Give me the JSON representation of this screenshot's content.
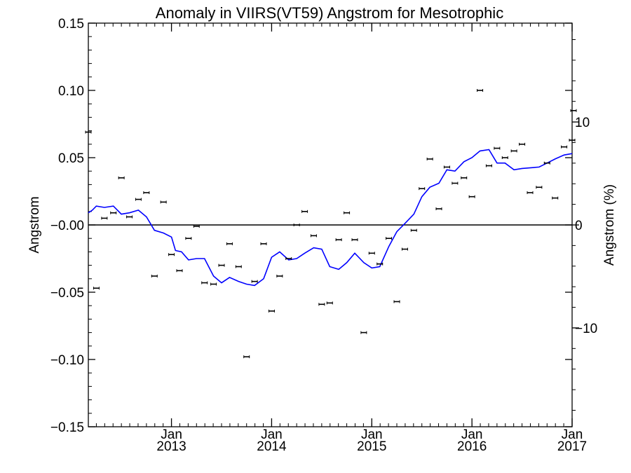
{
  "chart_data": {
    "type": "scatter",
    "title": "Anomaly in VIIRS(VT59) Angstrom for Mesotrophic",
    "ylabel": "Angstrom",
    "y2label": "Angstrom (%)",
    "xlabel": "",
    "xlim": [
      2012.17,
      2017.0
    ],
    "ylim": [
      -0.15,
      0.15
    ],
    "y2lim": [
      -19.6,
      19.6
    ],
    "yticks": [
      "0.15",
      "0.10",
      "0.05",
      "-0.00",
      "-0.05",
      "-0.10",
      "-0.15"
    ],
    "y2ticks": [
      "10",
      "0",
      "−10"
    ],
    "xticks": [
      {
        "month": "Jan",
        "year": "2013"
      },
      {
        "month": "Jan",
        "year": "2014"
      },
      {
        "month": "Jan",
        "year": "2015"
      },
      {
        "month": "Jan",
        "year": "2016"
      },
      {
        "month": "Jan",
        "year": "2017"
      }
    ],
    "zero_line": true,
    "colors": {
      "points": "#000000",
      "smoothed": "#0000ff",
      "axes": "#000000"
    },
    "points": [
      {
        "x": 2012.17,
        "y": 0.069
      },
      {
        "x": 2012.25,
        "y": -0.047
      },
      {
        "x": 2012.33,
        "y": 0.005
      },
      {
        "x": 2012.42,
        "y": 0.009
      },
      {
        "x": 2012.5,
        "y": 0.035
      },
      {
        "x": 2012.58,
        "y": 0.006
      },
      {
        "x": 2012.67,
        "y": 0.019
      },
      {
        "x": 2012.75,
        "y": 0.024
      },
      {
        "x": 2012.83,
        "y": -0.038
      },
      {
        "x": 2012.92,
        "y": 0.017
      },
      {
        "x": 2013.0,
        "y": -0.022
      },
      {
        "x": 2013.08,
        "y": -0.034
      },
      {
        "x": 2013.17,
        "y": -0.01
      },
      {
        "x": 2013.25,
        "y": -0.001
      },
      {
        "x": 2013.33,
        "y": -0.043
      },
      {
        "x": 2013.42,
        "y": -0.044
      },
      {
        "x": 2013.5,
        "y": -0.03
      },
      {
        "x": 2013.58,
        "y": -0.014
      },
      {
        "x": 2013.67,
        "y": -0.031
      },
      {
        "x": 2013.75,
        "y": -0.098
      },
      {
        "x": 2013.83,
        "y": -0.042
      },
      {
        "x": 2013.92,
        "y": -0.014
      },
      {
        "x": 2014.0,
        "y": -0.064
      },
      {
        "x": 2014.08,
        "y": -0.038
      },
      {
        "x": 2014.17,
        "y": -0.025
      },
      {
        "x": 2014.25,
        "y": 0.0
      },
      {
        "x": 2014.33,
        "y": 0.01
      },
      {
        "x": 2014.42,
        "y": -0.008
      },
      {
        "x": 2014.5,
        "y": -0.059
      },
      {
        "x": 2014.58,
        "y": -0.058
      },
      {
        "x": 2014.67,
        "y": -0.011
      },
      {
        "x": 2014.75,
        "y": 0.009
      },
      {
        "x": 2014.83,
        "y": -0.011
      },
      {
        "x": 2014.92,
        "y": -0.08
      },
      {
        "x": 2015.0,
        "y": -0.021
      },
      {
        "x": 2015.08,
        "y": -0.029
      },
      {
        "x": 2015.17,
        "y": -0.01
      },
      {
        "x": 2015.25,
        "y": -0.057
      },
      {
        "x": 2015.33,
        "y": -0.018
      },
      {
        "x": 2015.42,
        "y": -0.004
      },
      {
        "x": 2015.5,
        "y": 0.027
      },
      {
        "x": 2015.58,
        "y": 0.049
      },
      {
        "x": 2015.67,
        "y": 0.012
      },
      {
        "x": 2015.75,
        "y": 0.043
      },
      {
        "x": 2015.83,
        "y": 0.031
      },
      {
        "x": 2015.92,
        "y": 0.035
      },
      {
        "x": 2016.0,
        "y": 0.021
      },
      {
        "x": 2016.08,
        "y": 0.1
      },
      {
        "x": 2016.17,
        "y": 0.044
      },
      {
        "x": 2016.25,
        "y": 0.057
      },
      {
        "x": 2016.33,
        "y": 0.05
      },
      {
        "x": 2016.42,
        "y": 0.055
      },
      {
        "x": 2016.5,
        "y": 0.06
      },
      {
        "x": 2016.58,
        "y": 0.024
      },
      {
        "x": 2016.67,
        "y": 0.028
      },
      {
        "x": 2016.75,
        "y": 0.046
      },
      {
        "x": 2016.83,
        "y": 0.02
      },
      {
        "x": 2016.92,
        "y": 0.058
      },
      {
        "x": 2017.0,
        "y": 0.063
      },
      {
        "x": 2017.02,
        "y": 0.085
      }
    ],
    "smoothed_line": [
      {
        "x": 2012.17,
        "y": 0.009
      },
      {
        "x": 2012.21,
        "y": 0.011
      },
      {
        "x": 2012.25,
        "y": 0.014
      },
      {
        "x": 2012.33,
        "y": 0.013
      },
      {
        "x": 2012.42,
        "y": 0.014
      },
      {
        "x": 2012.5,
        "y": 0.008
      },
      {
        "x": 2012.58,
        "y": 0.009
      },
      {
        "x": 2012.67,
        "y": 0.011
      },
      {
        "x": 2012.75,
        "y": 0.006
      },
      {
        "x": 2012.83,
        "y": -0.004
      },
      {
        "x": 2012.92,
        "y": -0.006
      },
      {
        "x": 2013.0,
        "y": -0.009
      },
      {
        "x": 2013.04,
        "y": -0.019
      },
      {
        "x": 2013.1,
        "y": -0.02
      },
      {
        "x": 2013.17,
        "y": -0.026
      },
      {
        "x": 2013.25,
        "y": -0.025
      },
      {
        "x": 2013.33,
        "y": -0.025
      },
      {
        "x": 2013.42,
        "y": -0.038
      },
      {
        "x": 2013.5,
        "y": -0.043
      },
      {
        "x": 2013.58,
        "y": -0.039
      },
      {
        "x": 2013.67,
        "y": -0.042
      },
      {
        "x": 2013.75,
        "y": -0.044
      },
      {
        "x": 2013.83,
        "y": -0.045
      },
      {
        "x": 2013.92,
        "y": -0.04
      },
      {
        "x": 2014.0,
        "y": -0.024
      },
      {
        "x": 2014.08,
        "y": -0.02
      },
      {
        "x": 2014.17,
        "y": -0.026
      },
      {
        "x": 2014.25,
        "y": -0.025
      },
      {
        "x": 2014.33,
        "y": -0.021
      },
      {
        "x": 2014.42,
        "y": -0.017
      },
      {
        "x": 2014.5,
        "y": -0.018
      },
      {
        "x": 2014.58,
        "y": -0.031
      },
      {
        "x": 2014.67,
        "y": -0.033
      },
      {
        "x": 2014.75,
        "y": -0.028
      },
      {
        "x": 2014.83,
        "y": -0.021
      },
      {
        "x": 2014.92,
        "y": -0.028
      },
      {
        "x": 2015.0,
        "y": -0.032
      },
      {
        "x": 2015.08,
        "y": -0.031
      },
      {
        "x": 2015.17,
        "y": -0.016
      },
      {
        "x": 2015.25,
        "y": -0.005
      },
      {
        "x": 2015.33,
        "y": 0.001
      },
      {
        "x": 2015.42,
        "y": 0.008
      },
      {
        "x": 2015.5,
        "y": 0.021
      },
      {
        "x": 2015.58,
        "y": 0.028
      },
      {
        "x": 2015.67,
        "y": 0.031
      },
      {
        "x": 2015.75,
        "y": 0.041
      },
      {
        "x": 2015.83,
        "y": 0.04
      },
      {
        "x": 2015.92,
        "y": 0.047
      },
      {
        "x": 2016.0,
        "y": 0.05
      },
      {
        "x": 2016.08,
        "y": 0.055
      },
      {
        "x": 2016.17,
        "y": 0.056
      },
      {
        "x": 2016.25,
        "y": 0.046
      },
      {
        "x": 2016.33,
        "y": 0.046
      },
      {
        "x": 2016.42,
        "y": 0.041
      },
      {
        "x": 2016.5,
        "y": 0.042
      },
      {
        "x": 2016.67,
        "y": 0.043
      },
      {
        "x": 2016.75,
        "y": 0.046
      },
      {
        "x": 2016.83,
        "y": 0.049
      },
      {
        "x": 2016.92,
        "y": 0.052
      },
      {
        "x": 2017.0,
        "y": 0.053
      }
    ]
  }
}
